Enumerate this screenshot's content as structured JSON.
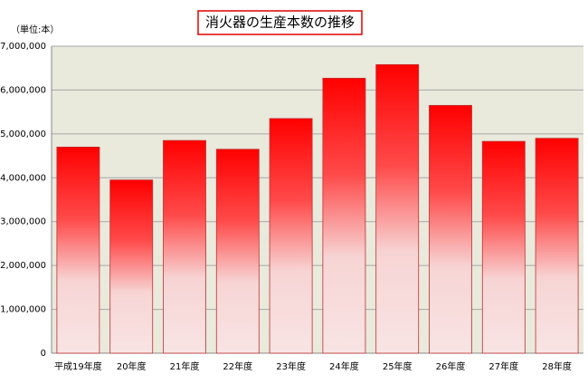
{
  "chart_data": {
    "type": "bar",
    "title": "消火器の生産本数の推移",
    "unit_label": "（単位:本）",
    "categories": [
      "平成19年度",
      "20年度",
      "21年度",
      "22年度",
      "23年度",
      "24年度",
      "25年度",
      "26年度",
      "27年度",
      "28年度"
    ],
    "values": [
      4700000,
      3950000,
      4850000,
      4650000,
      5350000,
      6270000,
      6580000,
      5650000,
      4830000,
      4900000
    ],
    "color": "#ff0000",
    "ylim": [
      0,
      7000000
    ],
    "yticks": [
      0,
      {
        "value": 1000000,
        "label": "1,000,000"
      },
      {
        "value": 2000000,
        "label": "2,000,000"
      },
      {
        "value": 3000000,
        "label": "3,000,000"
      },
      {
        "value": 4000000,
        "label": "4,000,000"
      },
      {
        "value": 5000000,
        "label": "5,000,000"
      },
      {
        "value": 6000000,
        "label": "6,000,000"
      },
      {
        "value": 7000000,
        "label": "7,000,000"
      }
    ],
    "grid": true
  }
}
